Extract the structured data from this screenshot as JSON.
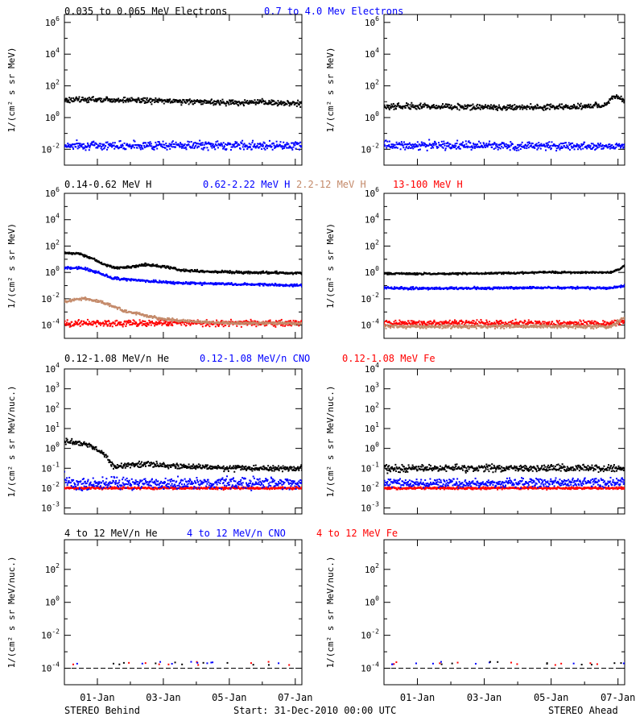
{
  "colors": {
    "black": "#000000",
    "blue": "#0000ff",
    "brown": "#c48a6a",
    "red": "#ff0000",
    "background": "#ffffff"
  },
  "rows": [
    {
      "headers": [
        {
          "text": "0.035 to 0.065 MeV Electrons",
          "color": "#000000"
        },
        {
          "text": "0.7 to 4.0 Mev Electrons",
          "color": "#0000ff"
        }
      ],
      "ylabel": "1/(cm² s sr MeV)"
    },
    {
      "headers": [
        {
          "text": "0.14-0.62 MeV H",
          "color": "#000000"
        },
        {
          "text": "0.62-2.22 MeV H",
          "color": "#0000ff"
        },
        {
          "text": "2.2-12 MeV H",
          "color": "#c48a6a"
        },
        {
          "text": "13-100 MeV H",
          "color": "#ff0000"
        }
      ],
      "ylabel": "1/(cm² s sr MeV)"
    },
    {
      "headers": [
        {
          "text": "0.12-1.08 MeV/n He",
          "color": "#000000"
        },
        {
          "text": "0.12-1.08 MeV/n CNO",
          "color": "#0000ff"
        },
        {
          "text": "0.12-1.08 MeV Fe",
          "color": "#ff0000"
        }
      ],
      "ylabel": "1/(cm² s sr MeV/nuc.)"
    },
    {
      "headers": [
        {
          "text": "4 to 12 MeV/n He",
          "color": "#000000"
        },
        {
          "text": "4 to 12 MeV/n CNO",
          "color": "#0000ff"
        },
        {
          "text": "4 to 12 MeV Fe",
          "color": "#ff0000"
        }
      ],
      "ylabel": "1/(cm² s sr MeV/nuc.)"
    }
  ],
  "footer": {
    "left": "STEREO Behind",
    "center": "Start: 31-Dec-2010 00:00 UTC",
    "right": "STEREO Ahead"
  },
  "x_tick_labels": [
    "01-Jan",
    "03-Jan",
    "05-Jan",
    "07-Jan"
  ],
  "chart_data": [
    {
      "type": "scatter",
      "panel": "STEREO Behind, electrons",
      "yscale": "log",
      "ylabel": "1/(cm² s sr MeV)",
      "ylim_exp": [
        -3,
        6.5
      ],
      "xlim_days": [
        0,
        7.2
      ],
      "ytick_exps": [
        -2,
        0,
        2,
        4,
        6
      ],
      "series": [
        {
          "name": "0.035 to 0.065 MeV Electrons",
          "color": "#000000",
          "scatter": 0.15,
          "log_values": [
            [
              0,
              1.1
            ],
            [
              1,
              1.15
            ],
            [
              2,
              1.1
            ],
            [
              3,
              1.05
            ],
            [
              4,
              1.0
            ],
            [
              5,
              0.95
            ],
            [
              6,
              0.95
            ],
            [
              7.2,
              0.9
            ]
          ]
        },
        {
          "name": "0.7 to 4.0 Mev Electrons",
          "color": "#0000ff",
          "scatter": 0.22,
          "log_values": [
            [
              0,
              -1.75
            ],
            [
              7.2,
              -1.75
            ]
          ]
        }
      ]
    },
    {
      "type": "scatter",
      "panel": "STEREO Ahead, electrons",
      "yscale": "log",
      "ylabel": "1/(cm² s sr MeV)",
      "ylim_exp": [
        -3,
        6.5
      ],
      "xlim_days": [
        0,
        7.2
      ],
      "ytick_exps": [
        -2,
        0,
        2,
        4,
        6
      ],
      "series": [
        {
          "name": "0.035 to 0.065 MeV Electrons",
          "color": "#000000",
          "scatter": 0.15,
          "log_values": [
            [
              0,
              0.7
            ],
            [
              1,
              0.7
            ],
            [
              2,
              0.7
            ],
            [
              3,
              0.65
            ],
            [
              4,
              0.65
            ],
            [
              5,
              0.65
            ],
            [
              6,
              0.7
            ],
            [
              6.5,
              0.75
            ],
            [
              6.65,
              0.9
            ],
            [
              6.85,
              1.3
            ],
            [
              7.0,
              1.25
            ],
            [
              7.2,
              1.0
            ]
          ]
        },
        {
          "name": "0.7 to 4.0 Mev Electrons",
          "color": "#0000ff",
          "scatter": 0.22,
          "log_values": [
            [
              0,
              -1.75
            ],
            [
              7.2,
              -1.8
            ]
          ]
        }
      ]
    },
    {
      "type": "scatter",
      "panel": "STEREO Behind, protons",
      "yscale": "log",
      "ylabel": "1/(cm² s sr MeV)",
      "ylim_exp": [
        -5,
        6
      ],
      "xlim_days": [
        0,
        7.2
      ],
      "ytick_exps": [
        -4,
        -2,
        0,
        2,
        4,
        6
      ],
      "series": [
        {
          "name": "0.14-0.62 MeV H",
          "color": "#000000",
          "scatter": 0.08,
          "log_values": [
            [
              0,
              1.5
            ],
            [
              0.4,
              1.45
            ],
            [
              0.8,
              1.1
            ],
            [
              1.2,
              0.6
            ],
            [
              1.5,
              0.35
            ],
            [
              2.0,
              0.4
            ],
            [
              2.5,
              0.6
            ],
            [
              3.0,
              0.45
            ],
            [
              3.6,
              0.15
            ],
            [
              4.5,
              0.05
            ],
            [
              5.5,
              0.0
            ],
            [
              7.2,
              -0.05
            ]
          ]
        },
        {
          "name": "0.62-2.22 MeV H",
          "color": "#0000ff",
          "scatter": 0.08,
          "log_values": [
            [
              0,
              0.35
            ],
            [
              0.5,
              0.35
            ],
            [
              1.0,
              0.0
            ],
            [
              1.5,
              -0.45
            ],
            [
              2.5,
              -0.65
            ],
            [
              3.5,
              -0.8
            ],
            [
              4.5,
              -0.85
            ],
            [
              5.5,
              -0.9
            ],
            [
              7.2,
              -1.0
            ]
          ]
        },
        {
          "name": "2.2-12 MeV H",
          "color": "#c48a6a",
          "scatter": 0.1,
          "log_values": [
            [
              0,
              -2.2
            ],
            [
              0.6,
              -1.95
            ],
            [
              1.2,
              -2.3
            ],
            [
              1.8,
              -2.9
            ],
            [
              2.4,
              -3.25
            ],
            [
              3.0,
              -3.55
            ],
            [
              4.0,
              -3.75
            ],
            [
              5.0,
              -3.85
            ],
            [
              7.2,
              -3.85
            ]
          ]
        },
        {
          "name": "13-100 MeV H",
          "color": "#ff0000",
          "scatter": 0.2,
          "log_values": [
            [
              0,
              -3.85
            ],
            [
              7.2,
              -3.85
            ]
          ]
        }
      ]
    },
    {
      "type": "scatter",
      "panel": "STEREO Ahead, protons",
      "yscale": "log",
      "ylabel": "1/(cm² s sr MeV)",
      "ylim_exp": [
        -5,
        6
      ],
      "xlim_days": [
        0,
        7.2
      ],
      "ytick_exps": [
        -4,
        -2,
        0,
        2,
        4,
        6
      ],
      "series": [
        {
          "name": "0.14-0.62 MeV H",
          "color": "#000000",
          "scatter": 0.06,
          "log_values": [
            [
              0,
              -0.1
            ],
            [
              2,
              -0.1
            ],
            [
              3.5,
              -0.05
            ],
            [
              5,
              0.0
            ],
            [
              6.8,
              0.0
            ],
            [
              7.0,
              0.2
            ],
            [
              7.2,
              0.5
            ]
          ]
        },
        {
          "name": "0.62-2.22 MeV H",
          "color": "#0000ff",
          "scatter": 0.08,
          "log_values": [
            [
              0,
              -1.2
            ],
            [
              3,
              -1.2
            ],
            [
              5,
              -1.15
            ],
            [
              6.8,
              -1.2
            ],
            [
              7.2,
              -1.0
            ]
          ]
        },
        {
          "name": "2.2-12 MeV H",
          "color": "#c48a6a",
          "scatter": 0.12,
          "log_values": [
            [
              0,
              -4.1
            ],
            [
              6.8,
              -4.1
            ],
            [
              7.2,
              -3.4
            ]
          ]
        },
        {
          "name": "13-100 MeV H",
          "color": "#ff0000",
          "scatter": 0.2,
          "log_values": [
            [
              0,
              -3.85
            ],
            [
              7.2,
              -3.85
            ]
          ]
        }
      ]
    },
    {
      "type": "scatter",
      "panel": "STEREO Behind, 0.12-1.08 MeV/n",
      "yscale": "log",
      "ylabel": "1/(cm² s sr MeV/nuc.)",
      "ylim_exp": [
        -3.3,
        4
      ],
      "xlim_days": [
        0,
        7.2
      ],
      "ytick_exps": [
        -3,
        -2,
        -1,
        0,
        1,
        2,
        3,
        4
      ],
      "series": [
        {
          "name": "0.12-1.08 MeV/n He",
          "color": "#000000",
          "scatter": 0.12,
          "log_values": [
            [
              0,
              0.35
            ],
            [
              0.4,
              0.3
            ],
            [
              0.8,
              0.15
            ],
            [
              1.2,
              -0.3
            ],
            [
              1.5,
              -0.9
            ],
            [
              2.5,
              -0.8
            ],
            [
              3.5,
              -0.9
            ],
            [
              5,
              -1.0
            ],
            [
              7.2,
              -1.0
            ]
          ]
        },
        {
          "name": "0.12-1.08 MeV/n CNO",
          "color": "#0000ff",
          "scatter": 0.25,
          "log_values": [
            [
              0,
              -1.5
            ],
            [
              0.2,
              -1.75
            ],
            [
              7.2,
              -1.75
            ]
          ]
        },
        {
          "name": "0.12-1.08 MeV Fe",
          "color": "#ff0000",
          "scatter": 0.05,
          "log_values": [
            [
              0,
              -2.0
            ],
            [
              7.2,
              -2.0
            ]
          ]
        }
      ]
    },
    {
      "type": "scatter",
      "panel": "STEREO Ahead, 0.12-1.08 MeV/n",
      "yscale": "log",
      "ylabel": "1/(cm² s sr MeV/nuc.)",
      "ylim_exp": [
        -3.3,
        4
      ],
      "xlim_days": [
        0,
        7.2
      ],
      "ytick_exps": [
        -3,
        -2,
        -1,
        0,
        1,
        2,
        3,
        4
      ],
      "series": [
        {
          "name": "0.12-1.08 MeV/n He",
          "color": "#000000",
          "scatter": 0.15,
          "log_values": [
            [
              0,
              -1.0
            ],
            [
              7.2,
              -1.0
            ]
          ]
        },
        {
          "name": "0.12-1.08 MeV/n CNO",
          "color": "#0000ff",
          "scatter": 0.2,
          "log_values": [
            [
              0,
              -1.75
            ],
            [
              7.2,
              -1.75
            ]
          ]
        },
        {
          "name": "0.12-1.08 MeV Fe",
          "color": "#ff0000",
          "scatter": 0.05,
          "log_values": [
            [
              0,
              -2.0
            ],
            [
              7.2,
              -2.0
            ]
          ]
        }
      ]
    },
    {
      "type": "scatter",
      "panel": "STEREO Behind, 4 to 12 MeV/n",
      "yscale": "log",
      "ylabel": "1/(cm² s sr MeV/nuc.)",
      "ylim_exp": [
        -5,
        3.8
      ],
      "xlim_days": [
        0,
        7.2
      ],
      "ytick_exps": [
        -4,
        -2,
        0,
        2
      ],
      "series": [
        {
          "name": "4 to 12 MeV/n He",
          "color": "#000000",
          "scatter": 0.0,
          "log_values": [
            [
              0,
              -4.0
            ],
            [
              7.2,
              -4.0
            ]
          ]
        },
        {
          "name": "4 to 12 MeV/n CNO",
          "color": "#0000ff",
          "scatter": 0.0,
          "log_values": [
            [
              0,
              -4.0
            ],
            [
              7.2,
              -4.0
            ]
          ]
        },
        {
          "name": "4 to 12 MeV Fe",
          "color": "#ff0000",
          "scatter": 0.0,
          "log_values": [
            [
              0,
              -4.0
            ],
            [
              7.2,
              -4.0
            ]
          ]
        }
      ]
    },
    {
      "type": "scatter",
      "panel": "STEREO Ahead, 4 to 12 MeV/n",
      "yscale": "log",
      "ylabel": "1/(cm² s sr MeV/nuc.)",
      "ylim_exp": [
        -5,
        3.8
      ],
      "xlim_days": [
        0,
        7.2
      ],
      "ytick_exps": [
        -4,
        -2,
        0,
        2
      ],
      "series": [
        {
          "name": "4 to 12 MeV/n He",
          "color": "#000000",
          "scatter": 0.0,
          "log_values": [
            [
              0,
              -4.0
            ],
            [
              7.2,
              -4.0
            ]
          ]
        },
        {
          "name": "4 to 12 MeV/n CNO",
          "color": "#0000ff",
          "scatter": 0.0,
          "log_values": [
            [
              0,
              -4.0
            ],
            [
              7.2,
              -4.0
            ]
          ]
        },
        {
          "name": "4 to 12 MeV Fe",
          "color": "#ff0000",
          "scatter": 0.0,
          "log_values": [
            [
              0,
              -4.0
            ],
            [
              7.2,
              -4.0
            ]
          ]
        }
      ]
    }
  ]
}
